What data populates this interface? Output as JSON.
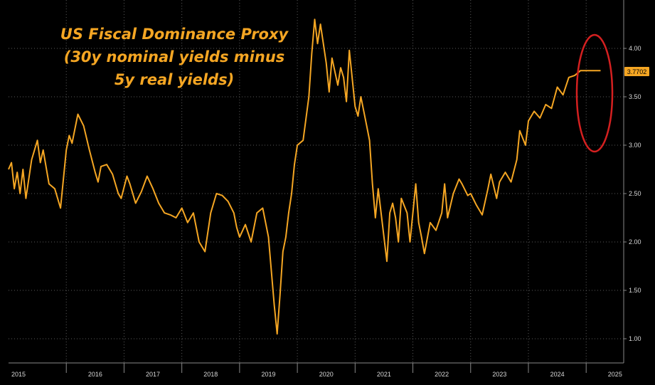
{
  "chart_data": {
    "type": "line",
    "title_lines": [
      "US Fiscal Dominance Proxy",
      "(30y nominal yields minus",
      "5y real yields)"
    ],
    "xlabel": "",
    "ylabel": "",
    "x_tick_labels": [
      "2015",
      "2016",
      "2017",
      "2018",
      "2019",
      "2020",
      "2021",
      "2022",
      "2023",
      "2024",
      "2025"
    ],
    "y_tick_labels": [
      "1.00",
      "1.50",
      "2.00",
      "2.50",
      "3.00",
      "3.50",
      "4.00"
    ],
    "xlim": [
      2015.0,
      2025.65
    ],
    "ylim": [
      0.75,
      4.5
    ],
    "grid": true,
    "last_value": "3.7702",
    "line_color": "#f5a623",
    "highlight_color": "#d42020",
    "label_bg_color": "#f5a623",
    "series": [
      {
        "x": [
          2015.0,
          2015.05,
          2015.1,
          2015.15,
          2015.2,
          2015.25,
          2015.3,
          2015.4,
          2015.5,
          2015.55,
          2015.6,
          2015.7,
          2015.8,
          2015.9,
          2016.0,
          2016.05,
          2016.1,
          2016.2,
          2016.3,
          2016.4,
          2016.5,
          2016.55,
          2016.6,
          2016.7,
          2016.8,
          2016.9,
          2016.95,
          2017.05,
          2017.1,
          2017.2,
          2017.3,
          2017.4,
          2017.5,
          2017.6,
          2017.7,
          2017.8,
          2017.9,
          2018.0,
          2018.1,
          2018.2,
          2018.3,
          2018.4,
          2018.5,
          2018.6,
          2018.7,
          2018.8,
          2018.9,
          2018.95,
          2019.0,
          2019.1,
          2019.2,
          2019.3,
          2019.4,
          2019.5,
          2019.6,
          2019.65,
          2019.7,
          2019.75,
          2019.8,
          2019.85,
          2019.9,
          2019.95,
          2020.0,
          2020.1,
          2020.2,
          2020.25,
          2020.3,
          2020.35,
          2020.4,
          2020.5,
          2020.55,
          2020.6,
          2020.7,
          2020.75,
          2020.8,
          2020.85,
          2020.9,
          2021.0,
          2021.05,
          2021.1,
          2021.2,
          2021.25,
          2021.3,
          2021.35,
          2021.4,
          2021.5,
          2021.55,
          2021.6,
          2021.65,
          2021.7,
          2021.75,
          2021.8,
          2021.9,
          2021.95,
          2022.05,
          2022.1,
          2022.15,
          2022.2,
          2022.3,
          2022.4,
          2022.5,
          2022.55,
          2022.6,
          2022.7,
          2022.8,
          2022.85,
          2022.95,
          2023.0,
          2023.1,
          2023.2,
          2023.3,
          2023.35,
          2023.45,
          2023.5,
          2023.6,
          2023.7,
          2023.8,
          2023.85,
          2023.95,
          2024.0,
          2024.1,
          2024.2,
          2024.3,
          2024.4,
          2024.5,
          2024.6,
          2024.7,
          2024.8,
          2024.9,
          2025.0,
          2025.05,
          2025.1,
          2025.15,
          2025.2,
          2025.25
        ],
        "y": [
          2.75,
          2.82,
          2.55,
          2.72,
          2.5,
          2.75,
          2.45,
          2.85,
          3.05,
          2.82,
          2.95,
          2.6,
          2.55,
          2.35,
          2.95,
          3.1,
          3.02,
          3.32,
          3.2,
          2.95,
          2.72,
          2.62,
          2.78,
          2.8,
          2.7,
          2.5,
          2.45,
          2.68,
          2.6,
          2.4,
          2.52,
          2.68,
          2.55,
          2.4,
          2.3,
          2.28,
          2.25,
          2.35,
          2.2,
          2.3,
          2.0,
          1.9,
          2.3,
          2.5,
          2.48,
          2.42,
          2.3,
          2.15,
          2.05,
          2.18,
          2.0,
          2.3,
          2.35,
          2.05,
          1.35,
          1.05,
          1.45,
          1.9,
          2.05,
          2.3,
          2.5,
          2.8,
          3.0,
          3.05,
          3.5,
          3.95,
          4.3,
          4.05,
          4.25,
          3.85,
          3.55,
          3.9,
          3.62,
          3.8,
          3.7,
          3.45,
          3.98,
          3.4,
          3.3,
          3.5,
          3.2,
          3.05,
          2.6,
          2.25,
          2.55,
          2.05,
          1.8,
          2.3,
          2.4,
          2.25,
          2.0,
          2.45,
          2.3,
          2.0,
          2.6,
          2.2,
          2.05,
          1.88,
          2.2,
          2.12,
          2.3,
          2.6,
          2.25,
          2.5,
          2.65,
          2.6,
          2.48,
          2.5,
          2.38,
          2.28,
          2.55,
          2.7,
          2.45,
          2.62,
          2.72,
          2.62,
          2.85,
          3.15,
          3.0,
          3.25,
          3.35,
          3.28,
          3.42,
          3.38,
          3.6,
          3.52,
          3.7,
          3.72,
          3.77,
          3.77,
          3.7702,
          3.7702,
          3.7702,
          3.7702,
          3.7702
        ],
        "color": "#f5a623"
      }
    ]
  }
}
